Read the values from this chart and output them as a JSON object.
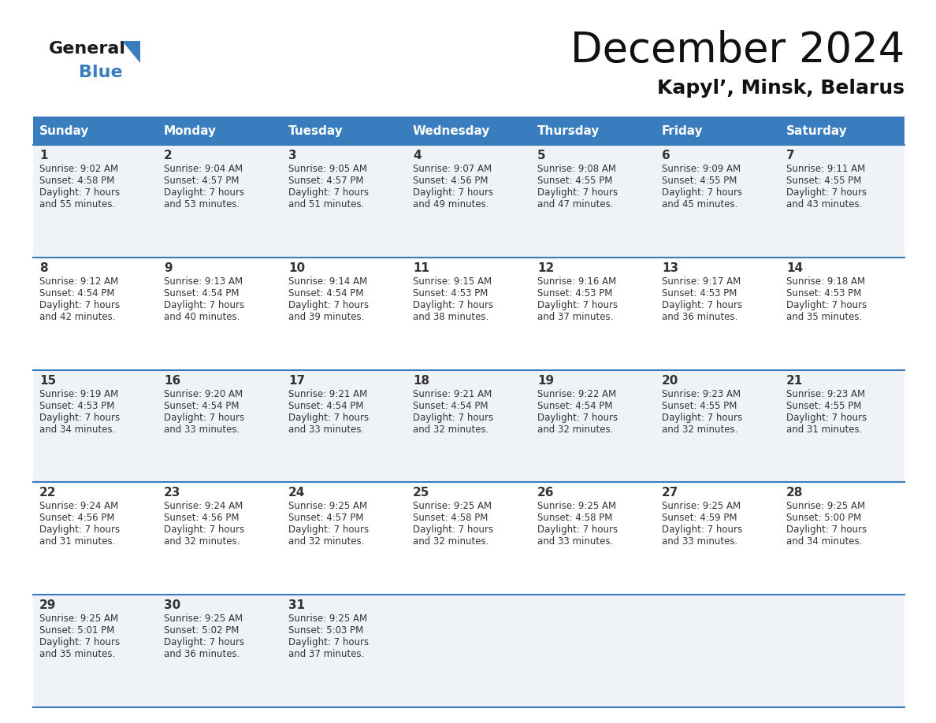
{
  "title": "December 2024",
  "subtitle": "Kapyl’, Minsk, Belarus",
  "days_of_week": [
    "Sunday",
    "Monday",
    "Tuesday",
    "Wednesday",
    "Thursday",
    "Friday",
    "Saturday"
  ],
  "header_bg": "#3a7dbf",
  "header_text": "#ffffff",
  "row_bg": [
    "#eff3f8",
    "#ffffff",
    "#eff3f8",
    "#ffffff",
    "#eff3f8"
  ],
  "border_color": "#3a7dbf",
  "text_color": "#333333",
  "logo_general_color": "#1a1a1a",
  "logo_blue_color": "#3a7dbf",
  "logo_triangle_color": "#3a7dbf",
  "calendar": [
    [
      {
        "day": "1",
        "sunrise": "9:02 AM",
        "sunset": "4:58 PM",
        "daylight_hours": "7 hours",
        "daylight_mins": "and 55 minutes."
      },
      {
        "day": "2",
        "sunrise": "9:04 AM",
        "sunset": "4:57 PM",
        "daylight_hours": "7 hours",
        "daylight_mins": "and 53 minutes."
      },
      {
        "day": "3",
        "sunrise": "9:05 AM",
        "sunset": "4:57 PM",
        "daylight_hours": "7 hours",
        "daylight_mins": "and 51 minutes."
      },
      {
        "day": "4",
        "sunrise": "9:07 AM",
        "sunset": "4:56 PM",
        "daylight_hours": "7 hours",
        "daylight_mins": "and 49 minutes."
      },
      {
        "day": "5",
        "sunrise": "9:08 AM",
        "sunset": "4:55 PM",
        "daylight_hours": "7 hours",
        "daylight_mins": "and 47 minutes."
      },
      {
        "day": "6",
        "sunrise": "9:09 AM",
        "sunset": "4:55 PM",
        "daylight_hours": "7 hours",
        "daylight_mins": "and 45 minutes."
      },
      {
        "day": "7",
        "sunrise": "9:11 AM",
        "sunset": "4:55 PM",
        "daylight_hours": "7 hours",
        "daylight_mins": "and 43 minutes."
      }
    ],
    [
      {
        "day": "8",
        "sunrise": "9:12 AM",
        "sunset": "4:54 PM",
        "daylight_hours": "7 hours",
        "daylight_mins": "and 42 minutes."
      },
      {
        "day": "9",
        "sunrise": "9:13 AM",
        "sunset": "4:54 PM",
        "daylight_hours": "7 hours",
        "daylight_mins": "and 40 minutes."
      },
      {
        "day": "10",
        "sunrise": "9:14 AM",
        "sunset": "4:54 PM",
        "daylight_hours": "7 hours",
        "daylight_mins": "and 39 minutes."
      },
      {
        "day": "11",
        "sunrise": "9:15 AM",
        "sunset": "4:53 PM",
        "daylight_hours": "7 hours",
        "daylight_mins": "and 38 minutes."
      },
      {
        "day": "12",
        "sunrise": "9:16 AM",
        "sunset": "4:53 PM",
        "daylight_hours": "7 hours",
        "daylight_mins": "and 37 minutes."
      },
      {
        "day": "13",
        "sunrise": "9:17 AM",
        "sunset": "4:53 PM",
        "daylight_hours": "7 hours",
        "daylight_mins": "and 36 minutes."
      },
      {
        "day": "14",
        "sunrise": "9:18 AM",
        "sunset": "4:53 PM",
        "daylight_hours": "7 hours",
        "daylight_mins": "and 35 minutes."
      }
    ],
    [
      {
        "day": "15",
        "sunrise": "9:19 AM",
        "sunset": "4:53 PM",
        "daylight_hours": "7 hours",
        "daylight_mins": "and 34 minutes."
      },
      {
        "day": "16",
        "sunrise": "9:20 AM",
        "sunset": "4:54 PM",
        "daylight_hours": "7 hours",
        "daylight_mins": "and 33 minutes."
      },
      {
        "day": "17",
        "sunrise": "9:21 AM",
        "sunset": "4:54 PM",
        "daylight_hours": "7 hours",
        "daylight_mins": "and 33 minutes."
      },
      {
        "day": "18",
        "sunrise": "9:21 AM",
        "sunset": "4:54 PM",
        "daylight_hours": "7 hours",
        "daylight_mins": "and 32 minutes."
      },
      {
        "day": "19",
        "sunrise": "9:22 AM",
        "sunset": "4:54 PM",
        "daylight_hours": "7 hours",
        "daylight_mins": "and 32 minutes."
      },
      {
        "day": "20",
        "sunrise": "9:23 AM",
        "sunset": "4:55 PM",
        "daylight_hours": "7 hours",
        "daylight_mins": "and 32 minutes."
      },
      {
        "day": "21",
        "sunrise": "9:23 AM",
        "sunset": "4:55 PM",
        "daylight_hours": "7 hours",
        "daylight_mins": "and 31 minutes."
      }
    ],
    [
      {
        "day": "22",
        "sunrise": "9:24 AM",
        "sunset": "4:56 PM",
        "daylight_hours": "7 hours",
        "daylight_mins": "and 31 minutes."
      },
      {
        "day": "23",
        "sunrise": "9:24 AM",
        "sunset": "4:56 PM",
        "daylight_hours": "7 hours",
        "daylight_mins": "and 32 minutes."
      },
      {
        "day": "24",
        "sunrise": "9:25 AM",
        "sunset": "4:57 PM",
        "daylight_hours": "7 hours",
        "daylight_mins": "and 32 minutes."
      },
      {
        "day": "25",
        "sunrise": "9:25 AM",
        "sunset": "4:58 PM",
        "daylight_hours": "7 hours",
        "daylight_mins": "and 32 minutes."
      },
      {
        "day": "26",
        "sunrise": "9:25 AM",
        "sunset": "4:58 PM",
        "daylight_hours": "7 hours",
        "daylight_mins": "and 33 minutes."
      },
      {
        "day": "27",
        "sunrise": "9:25 AM",
        "sunset": "4:59 PM",
        "daylight_hours": "7 hours",
        "daylight_mins": "and 33 minutes."
      },
      {
        "day": "28",
        "sunrise": "9:25 AM",
        "sunset": "5:00 PM",
        "daylight_hours": "7 hours",
        "daylight_mins": "and 34 minutes."
      }
    ],
    [
      {
        "day": "29",
        "sunrise": "9:25 AM",
        "sunset": "5:01 PM",
        "daylight_hours": "7 hours",
        "daylight_mins": "and 35 minutes."
      },
      {
        "day": "30",
        "sunrise": "9:25 AM",
        "sunset": "5:02 PM",
        "daylight_hours": "7 hours",
        "daylight_mins": "and 36 minutes."
      },
      {
        "day": "31",
        "sunrise": "9:25 AM",
        "sunset": "5:03 PM",
        "daylight_hours": "7 hours",
        "daylight_mins": "and 37 minutes."
      },
      null,
      null,
      null,
      null
    ]
  ]
}
